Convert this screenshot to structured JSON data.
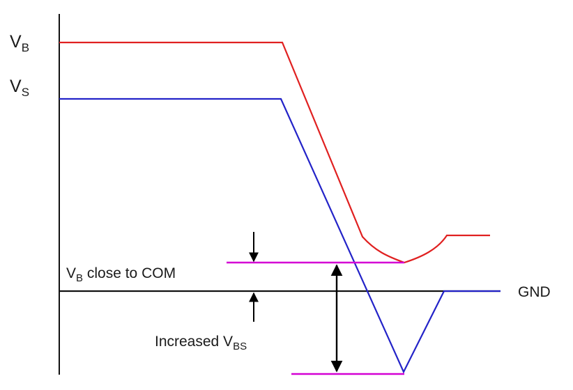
{
  "labels": {
    "vb": {
      "main": "V",
      "sub": "B"
    },
    "vs": {
      "main": "V",
      "sub": "S"
    },
    "gnd": "GND",
    "vb_close": {
      "main": "V",
      "sub": "B",
      "rest": " close to COM"
    },
    "increased_vbs": {
      "pre": "Increased V",
      "sub": "BS"
    }
  },
  "colors": {
    "vb_trace": "#e02020",
    "vs_trace": "#2323c8",
    "marker": "#d400d4",
    "axis": "#111111"
  }
}
